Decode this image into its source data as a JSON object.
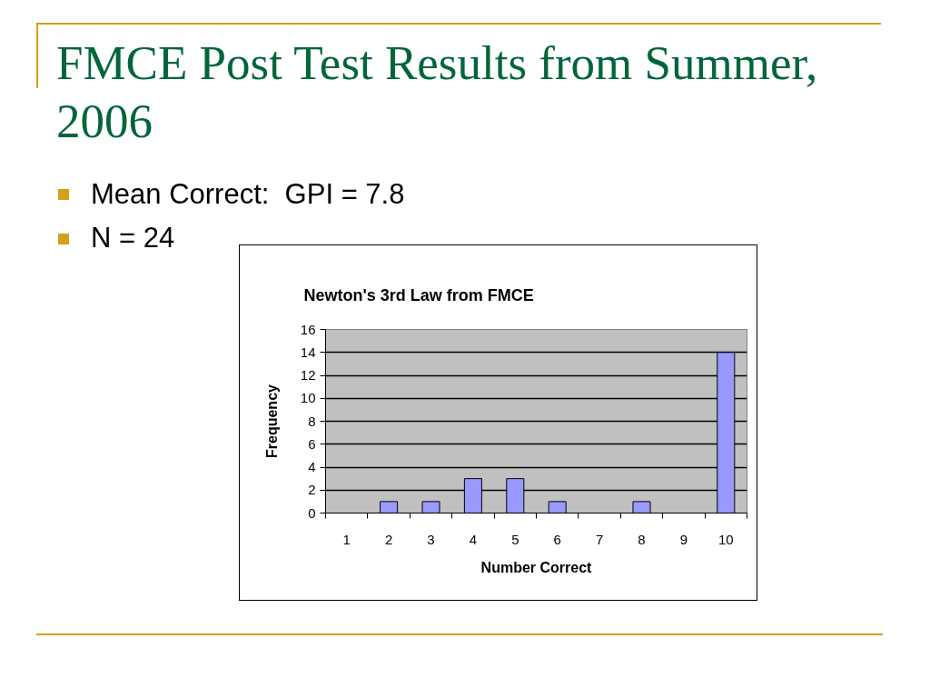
{
  "chart_data": {
    "type": "bar",
    "title": "FMCE Post Test Results from Summer, 2006",
    "subtitle": "Newton's 3rd Law from FMCE",
    "annotations": [
      "Mean Correct:  GPI = 7.8",
      "N = 24"
    ],
    "xlabel": "Number Correct",
    "ylabel": "Frequency",
    "categories": [
      "1",
      "2",
      "3",
      "4",
      "5",
      "6",
      "7",
      "8",
      "9",
      "10"
    ],
    "values": [
      0,
      1,
      1,
      3,
      3,
      1,
      0,
      1,
      0,
      14
    ],
    "color": "#9999ff",
    "ylim": [
      0,
      16
    ],
    "yticks": [
      0,
      2,
      4,
      6,
      8,
      10,
      12,
      14,
      16
    ],
    "grid": "y"
  }
}
